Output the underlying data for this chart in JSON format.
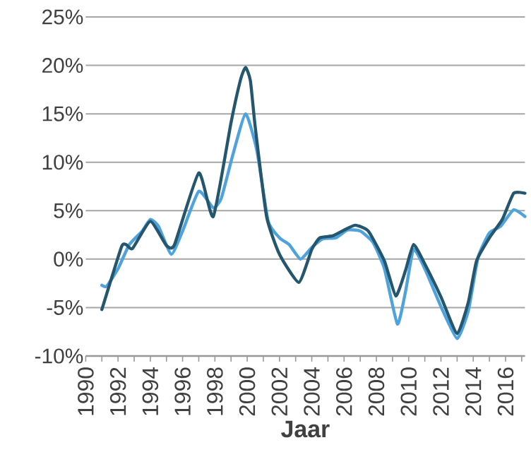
{
  "chart_data": {
    "type": "line",
    "xlabel": "Jaar",
    "xlim": [
      1990,
      2017.2
    ],
    "ylim": [
      -10,
      25
    ],
    "xticks": [
      1990,
      {
        "value": 1991,
        "label": null
      },
      1992,
      {
        "value": 1993,
        "label": null
      },
      1994,
      {
        "value": 1995,
        "label": null
      },
      1996,
      {
        "value": 1997,
        "label": null
      },
      1998,
      {
        "value": 1999,
        "label": null
      },
      2000,
      {
        "value": 2001,
        "label": null
      },
      2002,
      {
        "value": 2003,
        "label": null
      },
      2004,
      {
        "value": 2005,
        "label": null
      },
      2006,
      {
        "value": 2007,
        "label": null
      },
      2008,
      {
        "value": 2009,
        "label": null
      },
      2010,
      {
        "value": 2011,
        "label": null
      },
      2012,
      {
        "value": 2013,
        "label": null
      },
      2014,
      {
        "value": 2015,
        "label": null
      },
      2016,
      {
        "value": 2017,
        "label": null
      }
    ],
    "yticks": [
      {
        "value": -10,
        "label": "-10%"
      },
      {
        "value": -5,
        "label": "-5%"
      },
      {
        "value": 0,
        "label": "0%"
      },
      {
        "value": 5,
        "label": "5%"
      },
      {
        "value": 10,
        "label": "10%"
      },
      {
        "value": 15,
        "label": "15%"
      },
      {
        "value": 20,
        "label": "20%"
      },
      {
        "value": 25,
        "label": "25%"
      }
    ],
    "grid": "y",
    "marker": "none",
    "line_style": "solid",
    "series": [
      {
        "color": "#4ea3dc",
        "x": [
          1991.0,
          1991.3,
          1992.0,
          1992.7,
          1993.5,
          1994.0,
          1994.5,
          1995.3,
          1996.0,
          1997.0,
          1997.9,
          1998.4,
          1999.1,
          1999.9,
          2000.6,
          2001.3,
          2002.0,
          2002.6,
          2003.3,
          2004.0,
          2004.7,
          2005.5,
          2006.2,
          2007.0,
          2007.8,
          2008.5,
          2009.3,
          2009.8,
          2010.3,
          2011.0,
          2012.0,
          2013.0,
          2013.7,
          2014.3,
          2015.0,
          2015.7,
          2016.5,
          2017.2
        ],
        "values": [
          -2.7,
          -2.8,
          -1.0,
          1.5,
          2.9,
          4.1,
          3.4,
          0.5,
          2.9,
          7.0,
          5.3,
          6.3,
          10.7,
          15.0,
          11.2,
          3.9,
          2.2,
          1.5,
          0.0,
          1.2,
          2.1,
          2.2,
          3.0,
          2.9,
          1.7,
          -1.0,
          -6.7,
          -3.4,
          1.0,
          -1.0,
          -4.9,
          -8.2,
          -5.3,
          0.2,
          2.7,
          3.4,
          5.1,
          4.4
        ]
      },
      {
        "color": "#24566e",
        "x": [
          1991.0,
          1992.2,
          1992.5,
          1992.9,
          1994.0,
          1995.0,
          1995.5,
          1997.0,
          1997.9,
          1999.0,
          1999.6,
          1999.9,
          2000.2,
          2000.5,
          2001.2,
          2002.0,
          2003.2,
          2004.0,
          2004.5,
          2005.3,
          2006.0,
          2006.7,
          2007.5,
          2008.5,
          2009.2,
          2009.8,
          2010.3,
          2011.0,
          2012.0,
          2013.0,
          2013.7,
          2014.2,
          2015.0,
          2015.8,
          2016.5,
          2017.2
        ],
        "values": [
          -5.2,
          1.2,
          1.5,
          1.1,
          3.9,
          1.4,
          1.5,
          8.9,
          4.4,
          14.1,
          18.6,
          19.8,
          18.4,
          13.6,
          4.4,
          0.5,
          -2.4,
          1.0,
          2.2,
          2.4,
          3.0,
          3.5,
          2.9,
          -0.2,
          -3.8,
          -1.2,
          1.5,
          -0.5,
          -3.9,
          -7.7,
          -4.4,
          -0.2,
          2.2,
          4.1,
          6.8,
          6.8
        ]
      }
    ]
  }
}
